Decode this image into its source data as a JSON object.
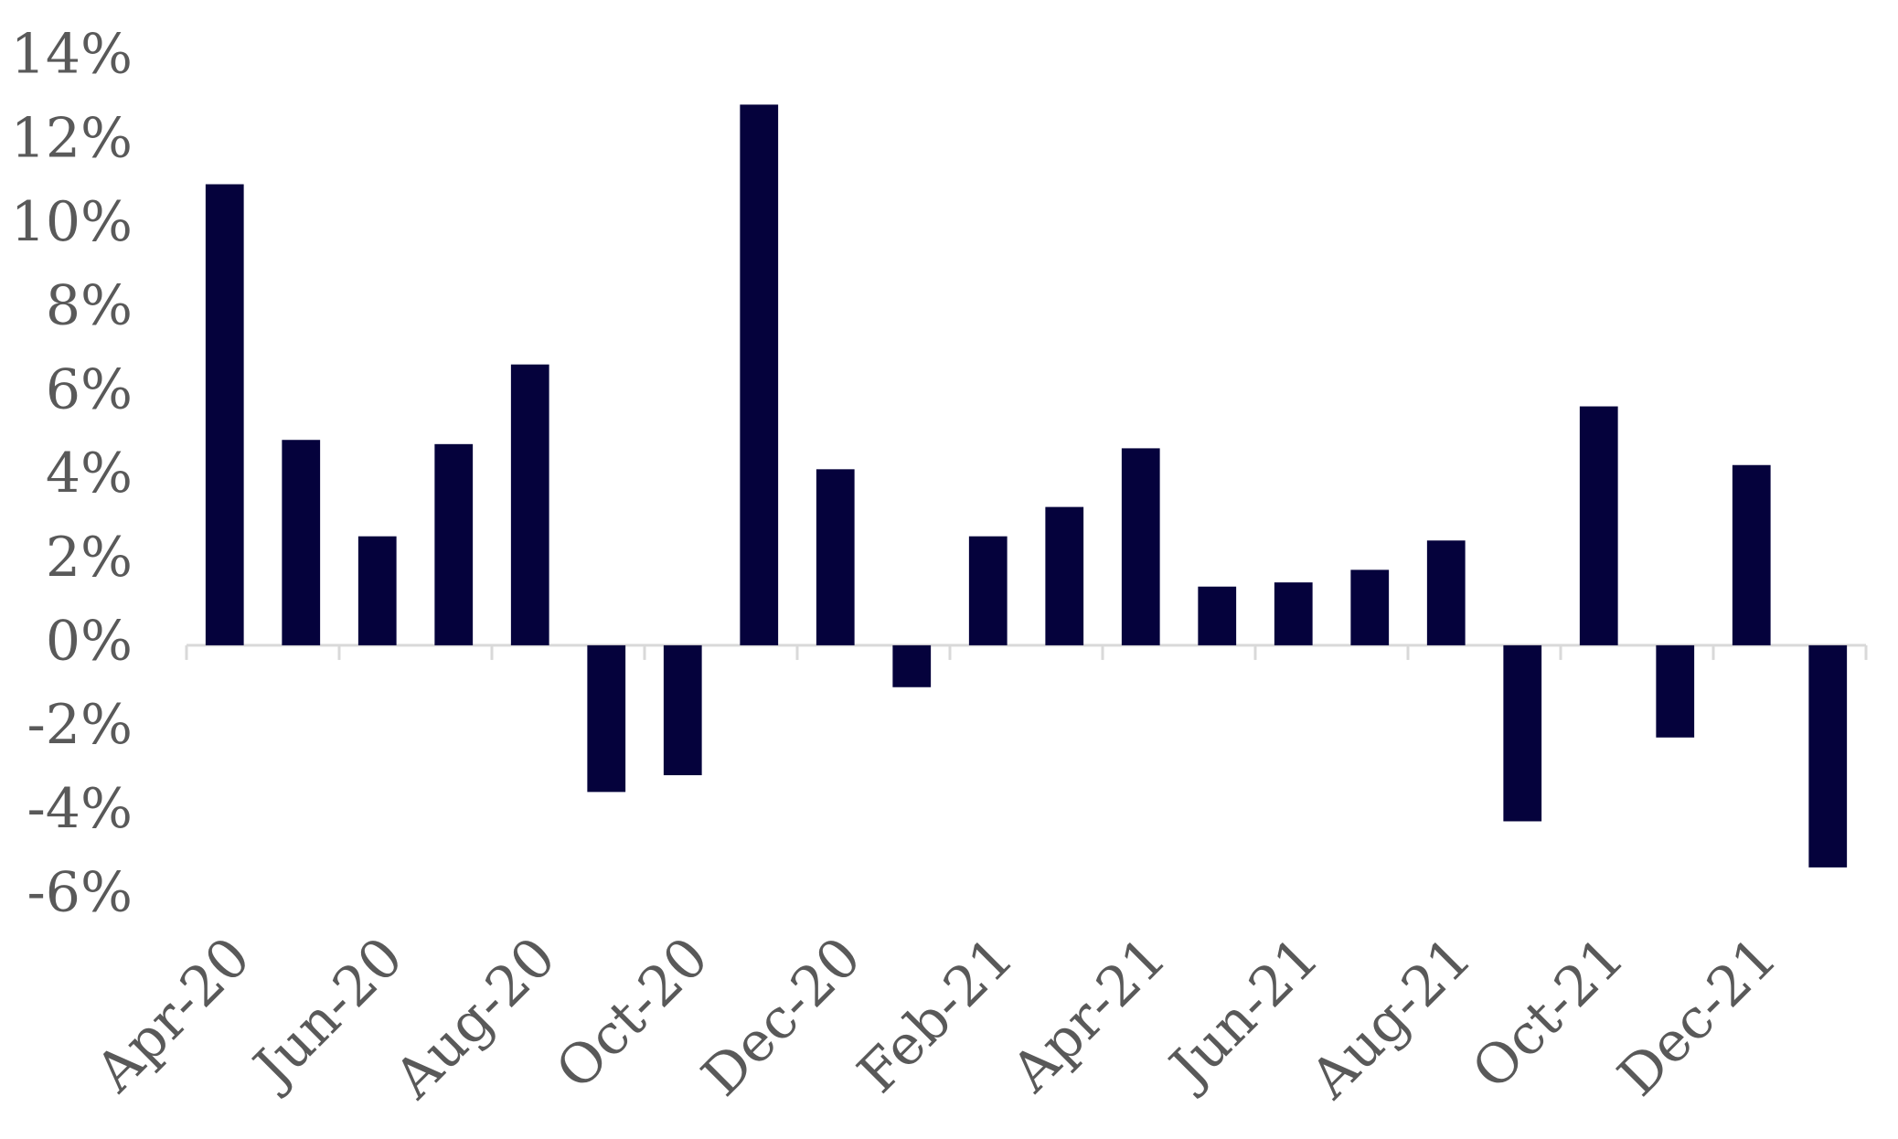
{
  "chart_data": {
    "type": "bar",
    "categories": [
      "Apr-20",
      null,
      "Jun-20",
      null,
      "Aug-20",
      null,
      "Oct-20",
      null,
      "Dec-20",
      null,
      "Feb-21",
      null,
      "Apr-21",
      null,
      "Jun-21",
      null,
      "Aug-21",
      null,
      "Oct-21",
      null,
      "Dec-21",
      null
    ],
    "values": [
      11.0,
      4.9,
      2.6,
      4.8,
      6.7,
      -3.5,
      -3.1,
      12.9,
      4.2,
      -1.0,
      2.6,
      3.3,
      4.7,
      1.4,
      1.5,
      1.8,
      2.5,
      -4.2,
      5.7,
      -2.2,
      4.3,
      -5.3
    ],
    "color": "#05023c",
    "ylim": [
      -6,
      14
    ],
    "yticks": [
      {
        "value": -6,
        "label": "-6%"
      },
      {
        "value": -4,
        "label": "-4%"
      },
      {
        "value": -2,
        "label": "-2%"
      },
      {
        "value": 0,
        "label": "0%"
      },
      {
        "value": 2,
        "label": "2%"
      },
      {
        "value": 4,
        "label": "4%"
      },
      {
        "value": 6,
        "label": "6%"
      },
      {
        "value": 8,
        "label": "8%"
      },
      {
        "value": 10,
        "label": "10%"
      },
      {
        "value": 12,
        "label": "12%"
      },
      {
        "value": 14,
        "label": "14%"
      }
    ],
    "grid": false
  }
}
